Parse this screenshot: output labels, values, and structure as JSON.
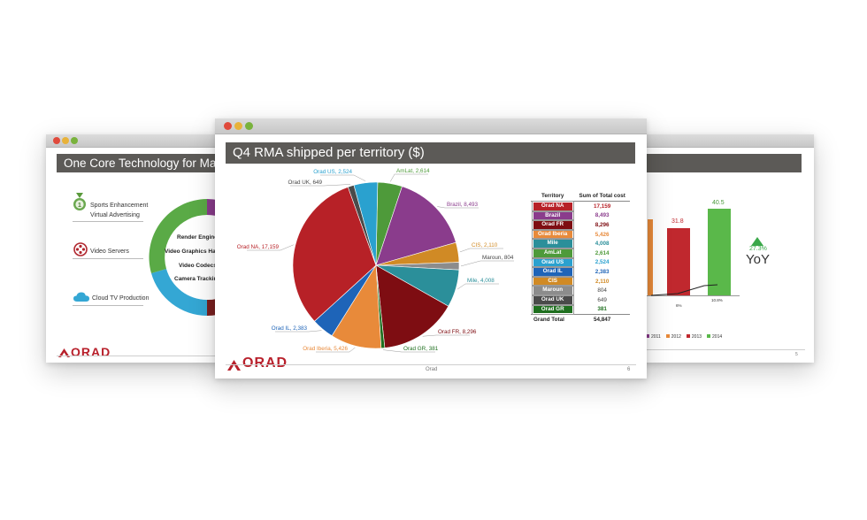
{
  "left_slide": {
    "title": "One Core Technology for Many",
    "services": [
      {
        "label": "Sports Enhancement",
        "icon": "medal-icon"
      },
      {
        "label": "Virtual Advertising",
        "icon": ""
      },
      {
        "label": "Video Servers",
        "icon": "film-reel-icon"
      },
      {
        "label": "Cloud TV Production",
        "icon": "cloud-icon"
      }
    ],
    "core_items": [
      "Render Engine",
      "Video Graphics Hardw",
      "Video Codecs",
      "Camera Tracking"
    ],
    "ring_colors": [
      "#8a3c8c",
      "#b0262e",
      "#7a2020",
      "#34a7d4",
      "#5aaa46"
    ],
    "logo": "ORAD"
  },
  "center_slide": {
    "title": "Q4 RMA shipped per territory ($)",
    "footer_center": "Orad",
    "page_number": "6",
    "logo": "ORAD"
  },
  "right_slide": {
    "bar_labels": [
      "31.8",
      "40.5"
    ],
    "pct_labels": [
      "6%",
      "10.8%"
    ],
    "yoy_pct": "27.3%",
    "yoy_label": "YoY",
    "legend": [
      {
        "label": "2011",
        "color": "#8a3c8c"
      },
      {
        "label": "2012",
        "color": "#e88a3a"
      },
      {
        "label": "2013",
        "color": "#c0282e"
      },
      {
        "label": "2014",
        "color": "#5ab84a"
      }
    ],
    "page_number": "5"
  },
  "chart_data": {
    "type": "pie",
    "title": "Q4 RMA shipped per territory ($)",
    "slices": [
      {
        "name": "AmLat",
        "value": 2614,
        "color": "#4e9a3a",
        "label": "AmLat,  2,614"
      },
      {
        "name": "Brazil",
        "value": 8493,
        "color": "#8a3c8c",
        "label": "Brazil,  8,493"
      },
      {
        "name": "CIS",
        "value": 2110,
        "color": "#d08a25",
        "label": "CIS,  2,110"
      },
      {
        "name": "Maroun",
        "value": 804,
        "color": "#8c8c8c",
        "label": "Maroun,  804"
      },
      {
        "name": "Mile",
        "value": 4008,
        "color": "#2b8f9a",
        "label": "Mile,  4,008"
      },
      {
        "name": "Orad FR",
        "value": 8296,
        "color": "#7e0d12",
        "label": "Orad FR,  8,296"
      },
      {
        "name": "Orad GR",
        "value": 381,
        "color": "#1f6f1f",
        "label": "Orad GR,  381"
      },
      {
        "name": "Orad Iberia",
        "value": 5426,
        "color": "#e88a3a",
        "label": "Orad Iberia,  5,426"
      },
      {
        "name": "Orad IL",
        "value": 2383,
        "color": "#1e64b8",
        "label": "Orad IL,  2,383"
      },
      {
        "name": "Orad NA",
        "value": 17159,
        "color": "#b72127",
        "label": "Orad NA,  17,159"
      },
      {
        "name": "Orad UK",
        "value": 649,
        "color": "#4a4a4a",
        "label": "Orad UK,  649"
      },
      {
        "name": "Orad US",
        "value": 2524,
        "color": "#2aa1cf",
        "label": "Orad US,  2,524"
      }
    ],
    "table": {
      "headers": [
        "Territory",
        "Sum of Total cost"
      ],
      "rows": [
        {
          "territory": "Orad NA",
          "value": "17,159",
          "color": "#b72127"
        },
        {
          "territory": "Brazil",
          "value": "8,493",
          "color": "#8a3c8c"
        },
        {
          "territory": "Orad FR",
          "value": "8,296",
          "color": "#7e0d12"
        },
        {
          "territory": "Orad Iberia",
          "value": "5,426",
          "color": "#e88a3a"
        },
        {
          "territory": "Mile",
          "value": "4,008",
          "color": "#2b8f9a"
        },
        {
          "territory": "AmLat",
          "value": "2,614",
          "color": "#4e9a3a"
        },
        {
          "territory": "Orad US",
          "value": "2,524",
          "color": "#2aa1cf"
        },
        {
          "territory": "Orad IL",
          "value": "2,383",
          "color": "#1e64b8"
        },
        {
          "territory": "CIS",
          "value": "2,110",
          "color": "#d08a25"
        },
        {
          "territory": "Maroun",
          "value": "804",
          "color": "#8c8c8c"
        },
        {
          "territory": "Orad UK",
          "value": "649",
          "color": "#4a4a4a"
        },
        {
          "territory": "Orad GR",
          "value": "381",
          "color": "#1f6f1f"
        }
      ],
      "total_label": "Grand Total",
      "total_value": "54,847"
    }
  }
}
